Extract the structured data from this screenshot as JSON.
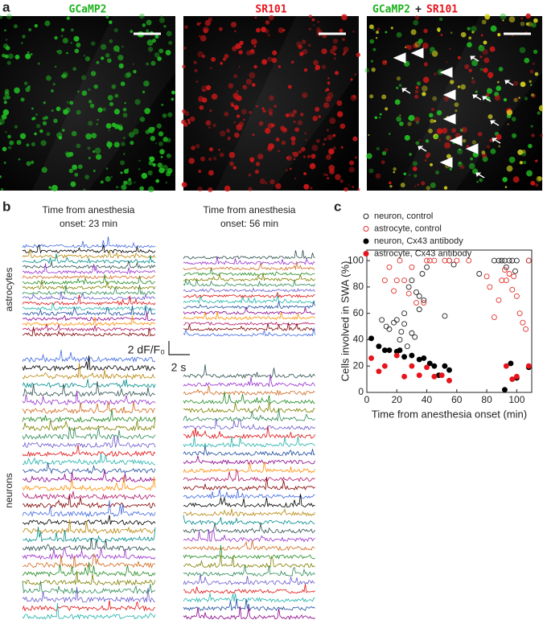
{
  "panels": {
    "a": {
      "label": "a",
      "titles": [
        "GCaMP2",
        "SR101"
      ],
      "merge_title": {
        "left": "GCaMP2",
        "plus": "+",
        "right": "SR101"
      }
    },
    "b": {
      "label": "b",
      "header_left": [
        "Time from anesthesia",
        "onset: 23 min"
      ],
      "header_right": [
        "Time from anesthesia",
        "onset: 56 min"
      ],
      "row_labels": [
        "astrocytes",
        "neurons"
      ],
      "scale_y": "2 dF/F₀",
      "scale_x": "2 s"
    },
    "c": {
      "label": "c"
    }
  },
  "chart_data": {
    "type": "scatter",
    "xlabel": "Time from anesthesia onset (min)",
    "ylabel": "Cells involved in SWA (%)",
    "xlim": [
      0,
      110
    ],
    "ylim": [
      0,
      108
    ],
    "xticks": [
      0,
      20,
      40,
      60,
      80,
      100
    ],
    "yticks": [
      0,
      20,
      40,
      60,
      80,
      100
    ],
    "legend": "top",
    "series": [
      {
        "name": "neuron, control",
        "color": "#222222",
        "marker": "open",
        "x": [
          10,
          13,
          15,
          18,
          20,
          22,
          23,
          25,
          25,
          27,
          28,
          30,
          30,
          32,
          33,
          35,
          35,
          37,
          38,
          40,
          52,
          55,
          58,
          75,
          85,
          88,
          90,
          92,
          93,
          95,
          97,
          99,
          100,
          108
        ],
        "values": [
          55,
          50,
          48,
          53,
          55,
          40,
          46,
          60,
          52,
          35,
          80,
          85,
          45,
          42,
          76,
          73,
          63,
          90,
          70,
          95,
          58,
          100,
          97,
          90,
          100,
          100,
          100,
          100,
          95,
          100,
          100,
          92,
          100,
          100
        ]
      },
      {
        "name": "astrocyte, control",
        "color": "#e0302a",
        "marker": "open",
        "x": [
          12,
          15,
          18,
          20,
          22,
          25,
          28,
          30,
          33,
          38,
          40,
          42,
          45,
          52,
          55,
          60,
          68,
          80,
          82,
          85,
          88,
          90,
          92,
          93,
          95,
          97,
          98,
          100,
          102,
          104,
          106,
          108
        ],
        "values": [
          85,
          95,
          77,
          85,
          100,
          85,
          75,
          95,
          68,
          68,
          100,
          100,
          100,
          100,
          100,
          100,
          100,
          88,
          80,
          57,
          70,
          85,
          93,
          85,
          90,
          78,
          88,
          73,
          60,
          53,
          48,
          100
        ]
      },
      {
        "name": "neuron, Cx43 antibody",
        "color": "#000000",
        "marker": "filled",
        "x": [
          3,
          8,
          12,
          15,
          20,
          22,
          25,
          30,
          35,
          38,
          42,
          45,
          48,
          52,
          55,
          92,
          96,
          100,
          108
        ],
        "values": [
          41,
          35,
          32,
          32,
          31,
          32,
          27,
          28,
          25,
          26,
          22,
          20,
          13,
          20,
          17,
          2,
          22,
          11,
          19
        ]
      },
      {
        "name": "astrocyte, Cx43 antibody",
        "color": "#e8141c",
        "marker": "filled",
        "x": [
          3,
          8,
          12,
          20,
          25,
          30,
          35,
          40,
          45,
          50,
          55,
          93,
          97,
          100,
          108
        ],
        "values": [
          26,
          16,
          20,
          28,
          12,
          20,
          13,
          19,
          12,
          13,
          9,
          20,
          10,
          12,
          20
        ]
      }
    ]
  }
}
